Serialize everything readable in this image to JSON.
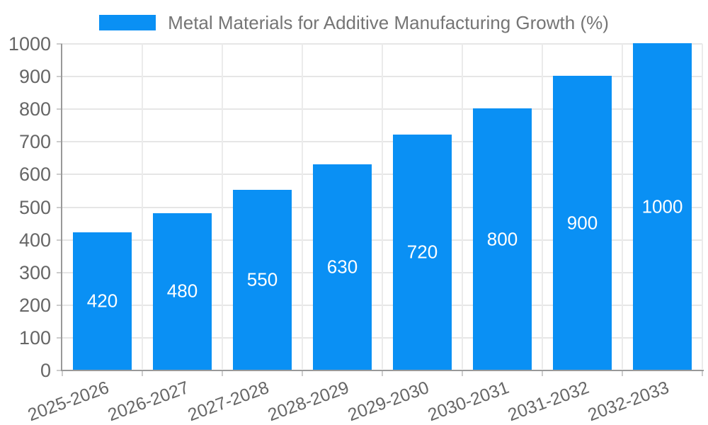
{
  "legend": {
    "label": "Metal Materials for Additive Manufacturing Growth (%)"
  },
  "colors": {
    "bar": "#0a90f4",
    "hgrid": "#e6e6e6",
    "vgrid": "#ebebeb",
    "axis": "#999999",
    "tick": "#cccccc",
    "axis_text": "#666666",
    "legend_text": "#757575",
    "value_label": "#ffffff",
    "background": "#ffffff"
  },
  "chart_data": {
    "type": "bar",
    "title": "Metal Materials for Additive Manufacturing Growth (%)",
    "categories": [
      "2025-2026",
      "2026-2027",
      "2027-2028",
      "2028-2029",
      "2029-2030",
      "2030-2031",
      "2031-2032",
      "2032-2033"
    ],
    "values": [
      420,
      480,
      550,
      630,
      720,
      800,
      900,
      1000
    ],
    "value_labels": [
      "420",
      "480",
      "550",
      "630",
      "720",
      "800",
      "900",
      "1000"
    ],
    "series_name": "Metal Materials for Additive Manufacturing Growth (%)",
    "xlabel": "",
    "ylabel": "",
    "ylim": [
      0,
      1000
    ],
    "ytick_step": 100,
    "y_ticks": [
      0,
      100,
      200,
      300,
      400,
      500,
      600,
      700,
      800,
      900,
      1000
    ],
    "grid": true,
    "legend_position": "top-center",
    "value_label_position": "inside-middle",
    "x_label_rotation_deg": -20
  }
}
